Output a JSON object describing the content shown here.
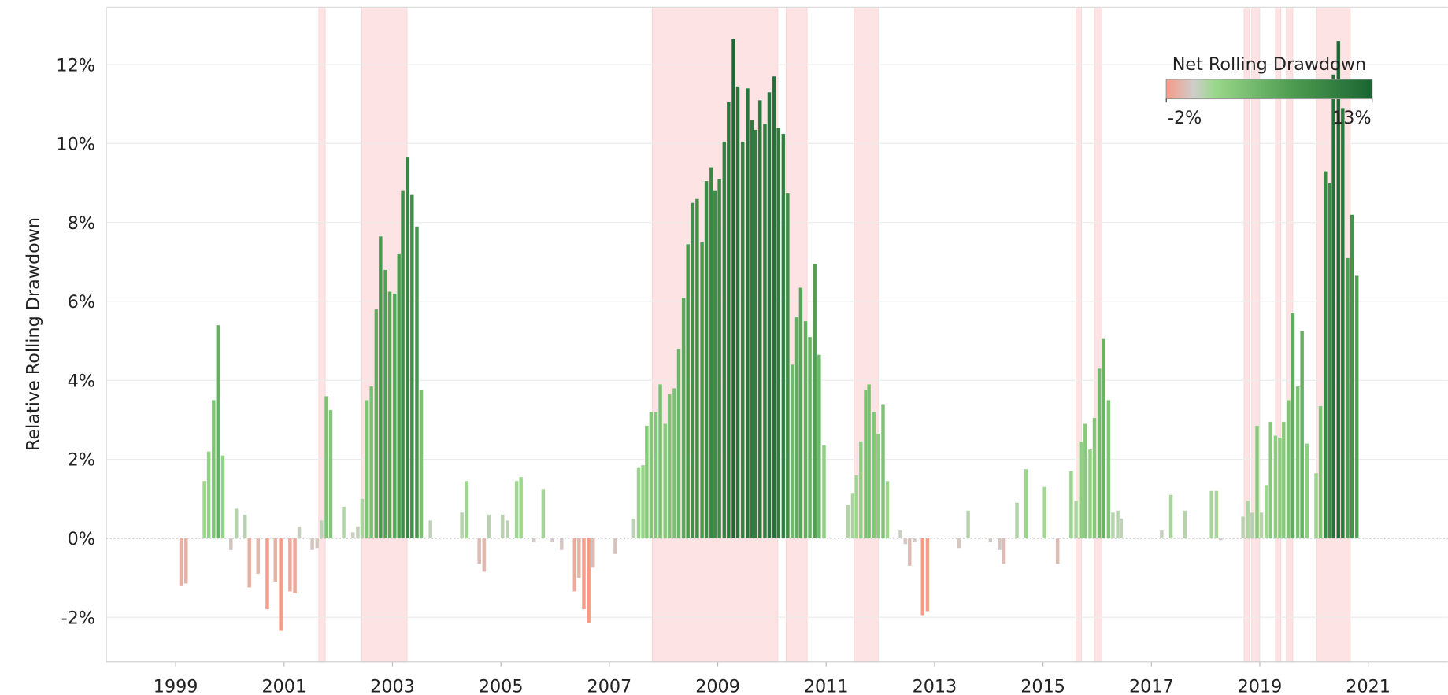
{
  "chart_data": {
    "type": "bar",
    "y_label": "Relative Rolling Drawdown",
    "x": [
      1999.1,
      1999.19,
      1999.53,
      1999.61,
      1999.7,
      1999.78,
      1999.87,
      2000.02,
      2000.12,
      2000.28,
      2000.36,
      2000.52,
      2000.69,
      2000.84,
      2000.94,
      2001.11,
      2001.2,
      2001.28,
      2001.52,
      2001.61,
      2001.69,
      2001.78,
      2001.86,
      2002.1,
      2002.27,
      2002.36,
      2002.44,
      2002.53,
      2002.61,
      2002.7,
      2002.78,
      2002.87,
      2002.95,
      2003.04,
      2003.12,
      2003.19,
      2003.28,
      2003.36,
      2003.45,
      2003.53,
      2003.7,
      2004.28,
      2004.37,
      2004.6,
      2004.69,
      2004.78,
      2005.03,
      2005.12,
      2005.29,
      2005.37,
      2005.61,
      2005.78,
      2005.95,
      2006.12,
      2006.36,
      2006.44,
      2006.53,
      2006.62,
      2006.7,
      2007.11,
      2007.45,
      2007.54,
      2007.62,
      2007.69,
      2007.77,
      2007.86,
      2007.94,
      2008.03,
      2008.11,
      2008.2,
      2008.28,
      2008.37,
      2008.45,
      2008.54,
      2008.62,
      2008.71,
      2008.79,
      2008.88,
      2008.95,
      2009.03,
      2009.12,
      2009.2,
      2009.29,
      2009.37,
      2009.46,
      2009.55,
      2009.63,
      2009.7,
      2009.78,
      2009.87,
      2009.95,
      2010.04,
      2010.12,
      2010.21,
      2010.29,
      2010.38,
      2010.46,
      2010.53,
      2010.62,
      2010.7,
      2010.79,
      2010.87,
      2010.96,
      2011.4,
      2011.49,
      2011.56,
      2011.64,
      2011.73,
      2011.79,
      2011.88,
      2011.96,
      2012.05,
      2012.13,
      2012.37,
      2012.46,
      2012.54,
      2012.63,
      2012.78,
      2012.87,
      2013.45,
      2013.62,
      2014.03,
      2014.2,
      2014.28,
      2014.52,
      2014.69,
      2015.03,
      2015.27,
      2015.52,
      2015.61,
      2015.7,
      2015.78,
      2015.87,
      2015.95,
      2016.04,
      2016.12,
      2016.21,
      2016.29,
      2016.38,
      2016.44,
      2017.19,
      2017.36,
      2017.62,
      2018.11,
      2018.2,
      2018.28,
      2018.69,
      2018.78,
      2018.86,
      2018.95,
      2019.03,
      2019.12,
      2019.2,
      2019.29,
      2019.37,
      2019.44,
      2019.53,
      2019.61,
      2019.7,
      2019.78,
      2019.87,
      2020.04,
      2020.12,
      2020.21,
      2020.29,
      2020.36,
      2020.45,
      2020.53,
      2020.62,
      2020.7,
      2020.79
    ],
    "values": [
      -1.2,
      -1.15,
      1.45,
      2.2,
      3.5,
      5.4,
      2.1,
      -0.3,
      0.75,
      0.6,
      -1.25,
      -0.9,
      -1.8,
      -1.1,
      -2.35,
      -1.35,
      -1.4,
      0.3,
      -0.3,
      -0.25,
      0.45,
      3.6,
      3.25,
      0.8,
      0.15,
      0.3,
      1.0,
      3.5,
      3.85,
      5.8,
      7.65,
      6.8,
      6.25,
      6.2,
      7.2,
      8.8,
      9.65,
      8.7,
      7.9,
      3.75,
      0.45,
      0.65,
      1.45,
      -0.65,
      -0.85,
      0.6,
      0.6,
      0.45,
      1.45,
      1.55,
      -0.1,
      1.25,
      -0.1,
      -0.3,
      -1.35,
      -1.0,
      -1.8,
      -2.15,
      -0.75,
      -0.4,
      0.5,
      1.8,
      1.85,
      2.85,
      3.2,
      3.2,
      3.9,
      2.9,
      3.65,
      3.8,
      4.8,
      6.1,
      7.45,
      8.5,
      8.6,
      7.5,
      9.05,
      9.4,
      8.8,
      9.1,
      10.05,
      11.05,
      12.65,
      11.45,
      10.05,
      11.4,
      10.6,
      10.35,
      11.1,
      10.5,
      11.3,
      11.7,
      10.4,
      10.25,
      8.75,
      4.4,
      5.6,
      6.35,
      5.5,
      5.1,
      6.95,
      4.65,
      2.35,
      0.85,
      1.15,
      1.6,
      2.45,
      3.75,
      3.9,
      3.2,
      2.65,
      3.4,
      1.45,
      0.2,
      -0.15,
      -0.7,
      -0.1,
      -1.95,
      -1.85,
      -0.25,
      0.7,
      -0.1,
      -0.3,
      -0.65,
      0.9,
      1.75,
      1.3,
      -0.65,
      1.7,
      0.95,
      2.45,
      2.9,
      2.25,
      3.05,
      4.3,
      5.05,
      3.5,
      0.65,
      0.7,
      0.5,
      0.2,
      1.1,
      0.7,
      1.2,
      1.2,
      -0.05,
      0.55,
      0.95,
      0.65,
      2.85,
      0.65,
      1.35,
      2.95,
      2.6,
      2.55,
      2.95,
      3.5,
      5.7,
      3.85,
      5.25,
      2.4,
      1.65,
      3.35,
      9.3,
      9.0,
      11.75,
      12.6,
      10.9,
      7.1,
      8.2,
      6.65
    ],
    "shaded_periods": [
      [
        2001.64,
        2001.76
      ],
      [
        2002.43,
        2003.27
      ],
      [
        2007.79,
        2010.11
      ],
      [
        2010.26,
        2010.65
      ],
      [
        2011.52,
        2011.96
      ],
      [
        2015.61,
        2015.71
      ],
      [
        2015.95,
        2016.09
      ],
      [
        2018.71,
        2018.81
      ],
      [
        2018.85,
        2019.0
      ],
      [
        2019.29,
        2019.39
      ],
      [
        2019.49,
        2019.61
      ],
      [
        2020.04,
        2020.67
      ]
    ],
    "shade_color": "#fde3e3",
    "xlim": [
      1997.72,
      2022.47
    ],
    "xticks": [
      1999,
      2001,
      2003,
      2005,
      2007,
      2009,
      2011,
      2013,
      2015,
      2017,
      2019,
      2021
    ],
    "ylim": [
      -3.13,
      13.45
    ],
    "yticks": [
      {
        "value": -2,
        "label": "-2%"
      },
      {
        "value": 0,
        "label": "0%"
      },
      {
        "value": 2,
        "label": "2%"
      },
      {
        "value": 4,
        "label": "4%"
      },
      {
        "value": 6,
        "label": "6%"
      },
      {
        "value": 8,
        "label": "8%"
      },
      {
        "value": 10,
        "label": "10%"
      },
      {
        "value": 12,
        "label": "12%"
      }
    ],
    "grid": true,
    "legend_position": "top-right",
    "color_scale": {
      "title": "Net Rolling Drawdown",
      "min": {
        "value": -2,
        "label": "-2%"
      },
      "max": {
        "value": 13,
        "label": "13%"
      },
      "stops": [
        -2,
        0,
        1.5,
        7,
        13
      ],
      "colors": [
        "#f79a85",
        "#cfcdcb",
        "#9bd88b",
        "#4f9e52",
        "#1b6532"
      ]
    }
  }
}
